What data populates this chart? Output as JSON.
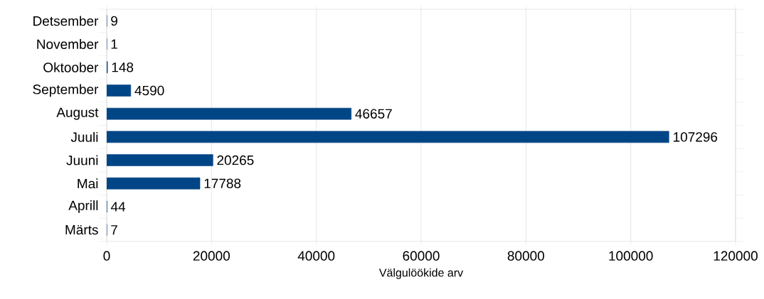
{
  "chart_data": {
    "type": "bar",
    "orientation": "horizontal",
    "xlabel": "Välgulöökide arv",
    "categories": [
      "Detsember",
      "November",
      "Oktoober",
      "September",
      "August",
      "Juuli",
      "Juuni",
      "Mai",
      "Aprill",
      "Märts"
    ],
    "values": [
      9,
      1,
      148,
      4590,
      46657,
      107296,
      20265,
      17788,
      44,
      7
    ],
    "color": "#004586",
    "xlim": [
      0,
      120000
    ],
    "xticks": [
      0,
      20000,
      40000,
      60000,
      80000,
      100000,
      120000
    ],
    "grid": "x",
    "data_labels": true
  }
}
